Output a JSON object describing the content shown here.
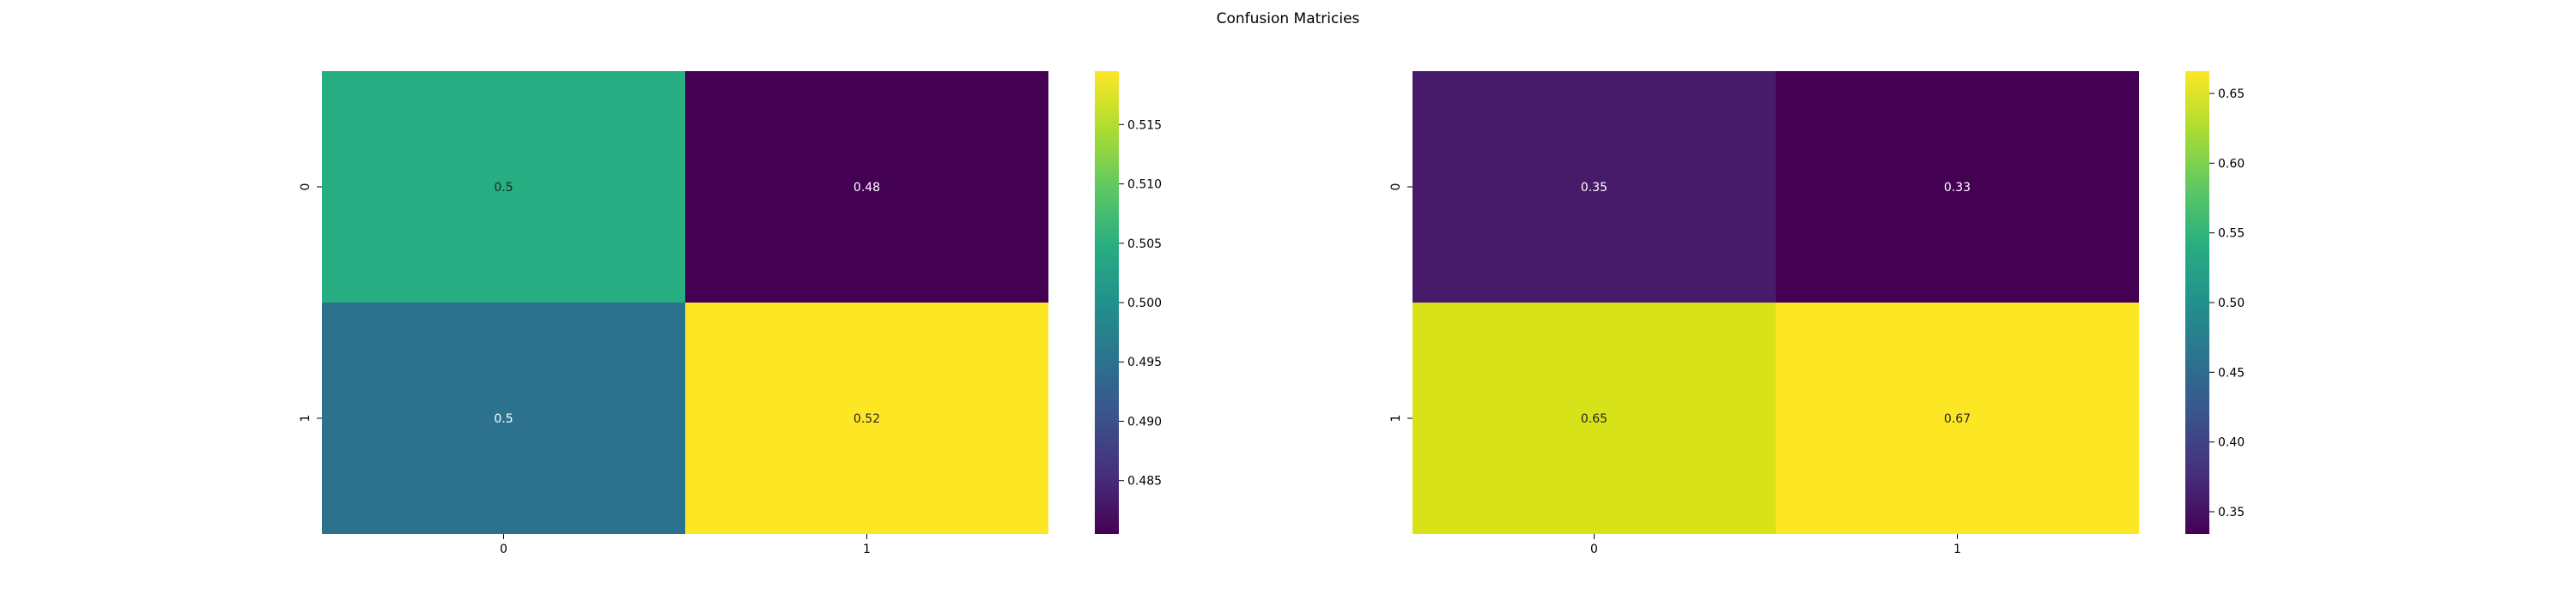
{
  "figure": {
    "title": "Confusion Matricies"
  },
  "colormap": [
    "#440154",
    "#472d7b",
    "#3b528b",
    "#2c728e",
    "#21918c",
    "#28ae80",
    "#5ec962",
    "#addc30",
    "#fde725"
  ],
  "chart_data": [
    {
      "type": "heatmap",
      "title": "",
      "x_categories": [
        "0",
        "1"
      ],
      "y_categories": [
        "0",
        "1"
      ],
      "values": [
        [
          0.5,
          0.48
        ],
        [
          0.5,
          0.52
        ]
      ],
      "colors": [
        [
          "#26ad81",
          "#440154"
        ],
        [
          "#2c728e",
          "#fde725"
        ]
      ],
      "colorbar": {
        "range": [
          0.4805,
          0.5195
        ],
        "ticks": [
          "0.485",
          "0.490",
          "0.495",
          "0.500",
          "0.505",
          "0.510",
          "0.515"
        ]
      }
    },
    {
      "type": "heatmap",
      "title": "",
      "x_categories": [
        "0",
        "1"
      ],
      "y_categories": [
        "0",
        "1"
      ],
      "values": [
        [
          0.35,
          0.33
        ],
        [
          0.65,
          0.67
        ]
      ],
      "colors": [
        [
          "#471a6a",
          "#440154"
        ],
        [
          "#d8e219",
          "#fde725"
        ]
      ],
      "colorbar": {
        "range": [
          0.334,
          0.666
        ],
        "ticks": [
          "0.35",
          "0.40",
          "0.45",
          "0.50",
          "0.55",
          "0.60",
          "0.65"
        ]
      }
    }
  ]
}
